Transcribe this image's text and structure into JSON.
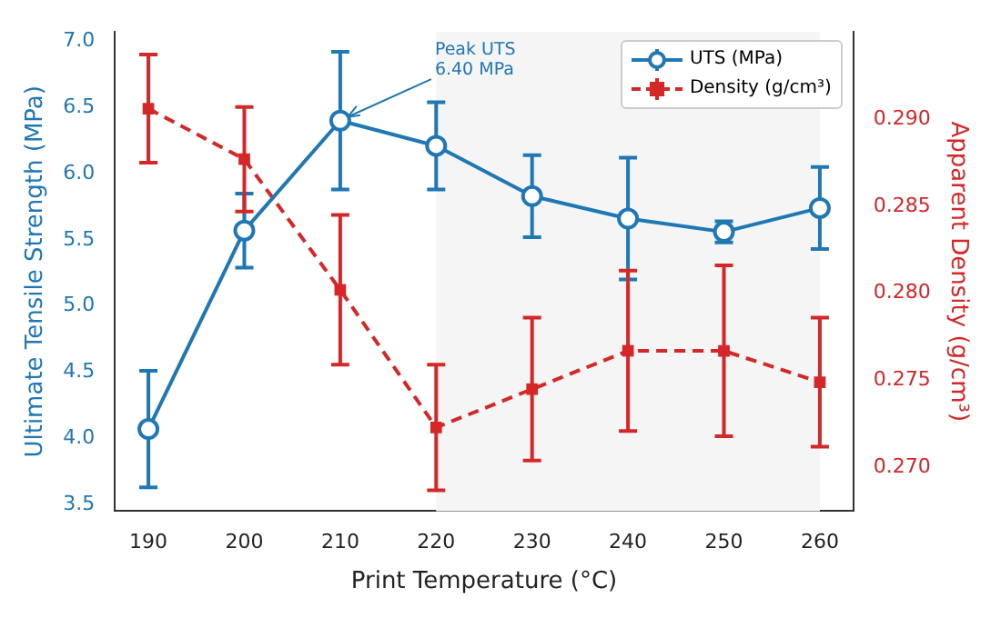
{
  "chart_data": {
    "type": "line",
    "xlabel": "Print Temperature (°C)",
    "ylabel": "Ultimate Tensile Strength (MPa)",
    "y2label": "Apparent Density (g/cm³)",
    "x": [
      190,
      200,
      210,
      220,
      230,
      240,
      250,
      260
    ],
    "series": [
      {
        "name": "UTS (MPa)",
        "color": "#1f77b4",
        "marker": "circle",
        "line_style": "solid",
        "values": [
          4.07,
          5.57,
          6.4,
          6.21,
          5.83,
          5.66,
          5.56,
          5.74
        ],
        "errors": [
          0.44,
          0.28,
          0.52,
          0.33,
          0.31,
          0.46,
          0.08,
          0.31
        ]
      },
      {
        "name": "Density (g/cm³)",
        "color": "#d62728",
        "marker": "square",
        "line_style": "dashed",
        "axis": "y2",
        "values": [
          0.2906,
          0.2877,
          0.2802,
          0.2723,
          0.2745,
          0.2767,
          0.2767,
          0.2749
        ],
        "errors": [
          0.0031,
          0.003,
          0.0043,
          0.0036,
          0.0041,
          0.0046,
          0.0049,
          0.0037
        ]
      }
    ],
    "xlim": [
      186.5,
      263.5
    ],
    "xticks": [
      190,
      200,
      210,
      220,
      230,
      240,
      250,
      260
    ],
    "ylim": [
      3.45,
      7.07
    ],
    "yticks": [
      3.5,
      {
        "value": 4,
        "label": "4.0"
      },
      4.5,
      {
        "value": 5,
        "label": "5.0"
      },
      5.5,
      {
        "value": 6,
        "label": "6.0"
      },
      6.5,
      {
        "value": 7,
        "label": "7.0"
      }
    ],
    "y2lim": [
      0.2675,
      0.295
    ],
    "y2ticks": [
      {
        "value": 0.27,
        "label": "0.270"
      },
      0.275,
      {
        "value": 0.28,
        "label": "0.280"
      },
      0.285,
      {
        "value": 0.29,
        "label": "0.290"
      }
    ],
    "bands": [
      {
        "axis": "x",
        "from": 220,
        "to": 260,
        "color": "#f5f5f5"
      }
    ],
    "annotations": [
      {
        "text": "Peak UTS\n6.40 MPa",
        "x": 210,
        "y": 6.4
      }
    ],
    "grid": false,
    "legend": "top right"
  }
}
